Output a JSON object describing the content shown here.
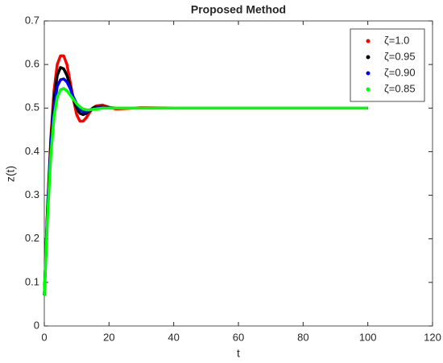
{
  "chart_data": {
    "type": "line",
    "title": "Proposed Method",
    "xlabel": "t",
    "ylabel": "z(t)",
    "x": [
      0,
      1,
      2,
      3,
      4,
      5,
      6,
      7,
      8,
      9,
      10,
      11,
      12,
      13,
      14,
      15,
      16,
      18,
      20,
      22,
      25,
      30,
      40,
      60,
      80,
      100
    ],
    "series": [
      {
        "name": "ζ=1.0",
        "color": "#ff0000",
        "values": [
          0.07,
          0.27,
          0.43,
          0.54,
          0.6,
          0.62,
          0.62,
          0.6,
          0.56,
          0.52,
          0.485,
          0.47,
          0.47,
          0.478,
          0.49,
          0.5,
          0.505,
          0.507,
          0.502,
          0.498,
          0.499,
          0.501,
          0.5,
          0.5,
          0.5,
          0.5
        ]
      },
      {
        "name": "ζ=0.95",
        "color": "#000000",
        "values": [
          0.07,
          0.27,
          0.42,
          0.52,
          0.575,
          0.593,
          0.59,
          0.575,
          0.55,
          0.52,
          0.5,
          0.488,
          0.485,
          0.488,
          0.494,
          0.5,
          0.503,
          0.503,
          0.501,
          0.5,
          0.5,
          0.5,
          0.5,
          0.5,
          0.5,
          0.5
        ]
      },
      {
        "name": "ζ=0.90",
        "color": "#0000ff",
        "values": [
          0.07,
          0.26,
          0.41,
          0.5,
          0.55,
          0.565,
          0.567,
          0.56,
          0.545,
          0.525,
          0.51,
          0.497,
          0.492,
          0.492,
          0.495,
          0.498,
          0.5,
          0.501,
          0.5,
          0.5,
          0.5,
          0.5,
          0.5,
          0.5,
          0.5,
          0.5
        ]
      },
      {
        "name": "ζ=0.85",
        "color": "#00ff00",
        "values": [
          0.07,
          0.25,
          0.39,
          0.48,
          0.525,
          0.542,
          0.545,
          0.54,
          0.53,
          0.52,
          0.51,
          0.503,
          0.498,
          0.496,
          0.496,
          0.497,
          0.498,
          0.5,
          0.5,
          0.5,
          0.5,
          0.5,
          0.5,
          0.5,
          0.5,
          0.5
        ]
      }
    ],
    "xlim": [
      0,
      120
    ],
    "xticks": [
      0,
      20,
      40,
      60,
      80,
      100,
      120
    ],
    "ylim": [
      0,
      0.7
    ],
    "yticks": [
      0,
      0.1,
      0.2,
      0.3,
      0.4,
      0.5,
      0.6,
      0.7
    ],
    "grid": false,
    "legend": "upper right"
  }
}
